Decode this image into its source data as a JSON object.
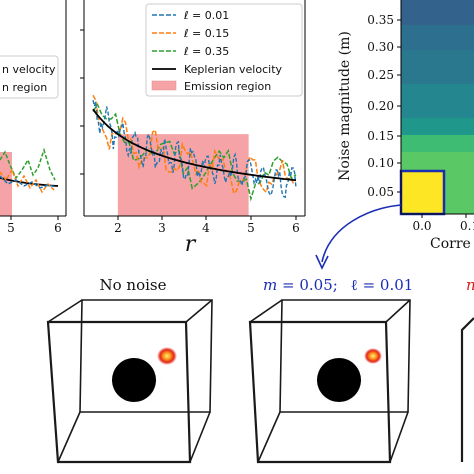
{
  "chart_data": [
    {
      "type": "line",
      "panel": "left-cropped",
      "x_ticks": [
        "5",
        "6"
      ],
      "legend_fragments": [
        "n velocity",
        "n region"
      ],
      "xlim": [
        1.3,
        6.2
      ],
      "ylim": [
        0,
        1
      ]
    },
    {
      "type": "line",
      "panel": "middle",
      "xlabel": "r",
      "x_ticks": [
        "2",
        "3",
        "4",
        "5",
        "6"
      ],
      "xlim": [
        1.3,
        6.2
      ],
      "ylim": [
        0,
        1
      ],
      "emission_region": [
        2.05,
        4.95
      ],
      "series": [
        {
          "name": "ℓ = 0.01",
          "style": "dashed",
          "color": "#1f77b4"
        },
        {
          "name": "ℓ = 0.15",
          "style": "dashed",
          "color": "#ff7f0e"
        },
        {
          "name": "ℓ = 0.35",
          "style": "dashed",
          "color": "#2ca02c"
        },
        {
          "name": "Keplerian velocity",
          "style": "solid",
          "color": "#000000"
        }
      ],
      "legend": {
        "placement": "top-right",
        "emission_label": "Emission region"
      }
    },
    {
      "type": "heatmap",
      "panel": "right-cropped",
      "ylabel": "Noise magnitude (m)",
      "xlabel_fragment": "Corre",
      "y_ticks": [
        "0.05",
        "0.10",
        "0.15",
        "0.20",
        "0.25",
        "0.30",
        "0.35"
      ],
      "x_ticks": [
        "0.0",
        "0.1"
      ],
      "cell_colors": [
        "#fde725",
        "#5ac864",
        "#3fbc73",
        "#1f978b",
        "#24868e",
        "#2a788e",
        "#2d6f8e",
        "#33638d"
      ]
    }
  ],
  "captions": {
    "no_noise": "No noise",
    "noise_label": "m = 0.05;  ℓ = 0.01",
    "m_letter": "m",
    "m_value": "= 0.05;",
    "ell_letter": "ℓ",
    "ell_value": "= 0.01",
    "cropped_red": "n"
  },
  "colors": {
    "accent": "#1a2db5",
    "highlight": "#d81e1e",
    "emission": "#f5a3a6"
  }
}
